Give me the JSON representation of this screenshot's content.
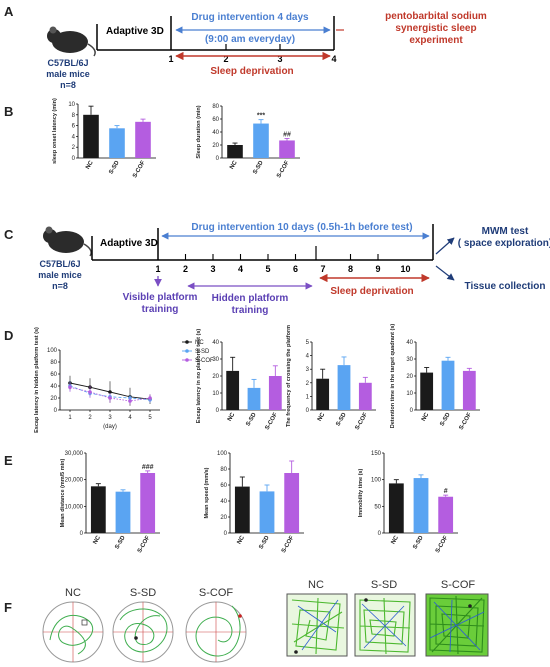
{
  "colors": {
    "nc": "#1a1a1a",
    "ssd": "#5aa4f2",
    "scof": "#b45de0",
    "red": "#c0392b",
    "blue": "#4a7fd1",
    "navy": "#1f3c78",
    "maze_bg": "#6acd3a"
  },
  "icons": [
    "mouse-icon",
    "mouse-icon",
    "trajectory-circle-nc",
    "trajectory-circle-ssd",
    "trajectory-circle-scof",
    "trajectory-square-nc",
    "trajectory-square-ssd",
    "trajectory-square-scof"
  ],
  "panels": {
    "A": "A",
    "B": "B",
    "C": "C",
    "D": "D",
    "E": "E",
    "F": "F"
  },
  "groups": [
    "NC",
    "S-SD",
    "S-COF"
  ],
  "A": {
    "strain": "C57BL/6J",
    "mice": "male mice",
    "n": "n=8",
    "adaptive": "Adaptive 3D",
    "drug": "Drug intervention 4 days",
    "drug_time": "(9:00 am everyday)",
    "ticks": [
      "1",
      "2",
      "3",
      "4"
    ],
    "sleep_dep": "Sleep deprivation",
    "outcome_1": "pentobarbital sodium",
    "outcome_2": "synergistic sleep",
    "outcome_3": "experiment"
  },
  "C": {
    "strain": "C57BL/6J",
    "mice": "male mice",
    "n": "n=8",
    "adaptive": "Adaptive 3D",
    "drug": "Drug intervention 10 days (0.5h-1h before test)",
    "ticks": [
      "1",
      "2",
      "3",
      "4",
      "5",
      "6",
      "7",
      "8",
      "9",
      "10"
    ],
    "visible_1": "Visible platform",
    "visible_2": "training",
    "hidden_1": "Hidden platform",
    "hidden_2": "training",
    "sleep_dep": "Sleep deprivation",
    "mwm_1": "MWM test",
    "mwm_2": "( space exploration)",
    "tissue": "Tissue collection"
  },
  "chart_data": [
    {
      "id": "B1",
      "type": "bar",
      "categories": [
        "NC",
        "S-SD",
        "S-COF"
      ],
      "values": [
        8.0,
        5.5,
        6.7
      ],
      "errors": [
        1.6,
        0.5,
        0.5
      ],
      "ylabel": "sleep onset latency (min)",
      "ylim": [
        0,
        10
      ],
      "yticks": [
        0,
        2,
        4,
        6,
        8,
        10
      ],
      "sig": [
        "",
        "",
        ""
      ]
    },
    {
      "id": "B2",
      "type": "bar",
      "categories": [
        "NC",
        "S-SD",
        "S-COF"
      ],
      "values": [
        20,
        53,
        27
      ],
      "errors": [
        3,
        6,
        3
      ],
      "ylabel": "Sleep duration (min)",
      "ylim": [
        0,
        80
      ],
      "yticks": [
        0,
        20,
        40,
        60,
        80
      ],
      "sig": [
        "",
        "***",
        "##"
      ]
    },
    {
      "id": "D1",
      "type": "line",
      "x": [
        1,
        2,
        3,
        4,
        5
      ],
      "xlabel": "(day)",
      "ylabel": "Escap latency in hidden platform test (s)",
      "ylim": [
        0,
        100
      ],
      "yticks": [
        0,
        20,
        40,
        60,
        80,
        100
      ],
      "series": [
        {
          "name": "NC",
          "values": [
            45,
            38,
            30,
            22,
            18
          ],
          "errors": [
            12,
            15,
            18,
            15,
            8
          ]
        },
        {
          "name": "S-SD",
          "values": [
            40,
            28,
            22,
            20,
            17
          ],
          "errors": [
            8,
            6,
            6,
            5,
            5
          ]
        },
        {
          "name": "S-COF",
          "values": [
            38,
            30,
            20,
            15,
            20
          ],
          "errors": [
            8,
            10,
            8,
            6,
            6
          ]
        }
      ]
    },
    {
      "id": "D2",
      "type": "bar",
      "categories": [
        "NC",
        "S-SD",
        "S-COF"
      ],
      "values": [
        23,
        13,
        20
      ],
      "errors": [
        8,
        5,
        6
      ],
      "ylabel": "Escap latency in no platform test (s)",
      "ylim": [
        0,
        40
      ],
      "yticks": [
        0,
        10,
        20,
        30,
        40
      ],
      "sig": [
        "",
        "",
        ""
      ]
    },
    {
      "id": "D3",
      "type": "bar",
      "categories": [
        "NC",
        "S-SD",
        "S-COF"
      ],
      "values": [
        2.3,
        3.3,
        2.0
      ],
      "errors": [
        0.7,
        0.6,
        0.4
      ],
      "ylabel": "The frequency of crossing the platform",
      "ylim": [
        0,
        5
      ],
      "yticks": [
        0,
        1,
        2,
        3,
        4,
        5
      ],
      "sig": [
        "",
        "",
        ""
      ]
    },
    {
      "id": "D4",
      "type": "bar",
      "categories": [
        "NC",
        "S-SD",
        "S-COF"
      ],
      "values": [
        22,
        29,
        23
      ],
      "errors": [
        3,
        2,
        1.5
      ],
      "ylabel": "Detention time in the target quadrant (s)",
      "ylim": [
        0,
        40
      ],
      "yticks": [
        0,
        10,
        20,
        30,
        40
      ],
      "sig": [
        "",
        "",
        ""
      ]
    },
    {
      "id": "E1",
      "type": "bar",
      "categories": [
        "NC",
        "S-SD",
        "S-COF"
      ],
      "values": [
        17500,
        15500,
        22500
      ],
      "errors": [
        1000,
        700,
        800
      ],
      "ylabel": "Mean distance (mm/5 min)",
      "ylim": [
        0,
        30000
      ],
      "yticks": [
        "0",
        "10,000",
        "20,000",
        "30,000"
      ],
      "sig": [
        "",
        "",
        "###"
      ]
    },
    {
      "id": "E2",
      "type": "bar",
      "categories": [
        "NC",
        "S-SD",
        "S-COF"
      ],
      "values": [
        58,
        52,
        75
      ],
      "errors": [
        12,
        8,
        15
      ],
      "ylabel": "Mean speed (mm/s)",
      "ylim": [
        0,
        100
      ],
      "yticks": [
        0,
        20,
        40,
        60,
        80,
        100
      ],
      "sig": [
        "",
        "",
        ""
      ]
    },
    {
      "id": "E3",
      "type": "bar",
      "categories": [
        "NC",
        "S-SD",
        "S-COF"
      ],
      "values": [
        93,
        103,
        68
      ],
      "errors": [
        7,
        6,
        3
      ],
      "ylabel": "Immobility time (s)",
      "ylim": [
        0,
        150
      ],
      "yticks": [
        0,
        50,
        100,
        150
      ],
      "sig": [
        "",
        "",
        "#"
      ]
    }
  ],
  "F": {
    "labels_circle": [
      "NC",
      "S-SD",
      "S-COF"
    ],
    "labels_square": [
      "NC",
      "S-SD",
      "S-COF"
    ]
  }
}
